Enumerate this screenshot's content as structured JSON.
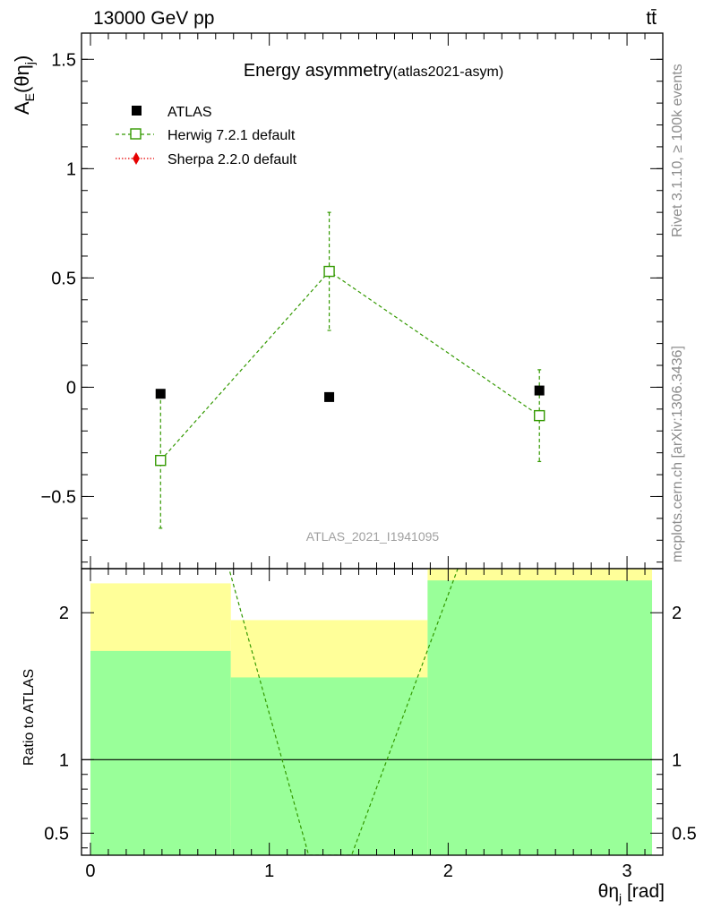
{
  "header": {
    "energy": "13000 GeV pp",
    "process": "tt̄"
  },
  "side_labels": {
    "rivet": "Rivet 3.1.10, ≥ 100k events",
    "mcplots": "mcplots.cern.ch [arXiv:1306.3436]"
  },
  "watermark": "ATLAS_2021_I1941095",
  "colors": {
    "herwig": "#339900",
    "sherpa": "#e60000",
    "band_inner": "#99ff99",
    "band_outer": "#ffff99"
  },
  "chart_data": [
    {
      "type": "scatter",
      "title": "Energy asymmetry",
      "subtitle": "(atlas2021-asym)",
      "ylabel": "A_E(θ_j)",
      "xlabel": "",
      "xlim": [
        -0.05,
        3.2
      ],
      "ylim": [
        -0.83,
        1.62
      ],
      "yticks": [
        -0.5,
        0,
        0.5,
        1,
        1.5
      ],
      "ytick_labels": [
        "−0.5",
        "0",
        "0.5",
        "1",
        "1.5"
      ],
      "legend_position": "top-left",
      "series": [
        {
          "name": "ATLAS",
          "marker": "filled-square",
          "x": [
            0.392,
            1.335,
            2.51
          ],
          "y": [
            -0.03,
            -0.045,
            -0.015
          ]
        },
        {
          "name": "Herwig 7.2.1 default",
          "marker": "open-square",
          "line": "dashed",
          "x": [
            0.392,
            1.335,
            2.51
          ],
          "y": [
            -0.335,
            0.53,
            -0.13
          ],
          "err_low": [
            0.31,
            0.27,
            0.21
          ],
          "err_high": [
            0.305,
            0.27,
            0.21
          ]
        },
        {
          "name": "Sherpa 2.2.0 default",
          "marker": "diamond",
          "line": "dotted",
          "x": [],
          "y": []
        }
      ]
    },
    {
      "type": "line",
      "ylabel": "Ratio to ATLAS",
      "xlabel": "θ_j [rad]",
      "xlim": [
        -0.05,
        3.2
      ],
      "ylim": [
        0.35,
        2.3
      ],
      "yticks": [
        0.5,
        1,
        2
      ],
      "ytick_labels": [
        "0.5",
        "1",
        "2"
      ],
      "xticks": [
        0,
        1,
        2,
        3
      ],
      "xtick_labels": [
        "0",
        "1",
        "2",
        "3"
      ],
      "bins": [
        {
          "x_low": 0,
          "x_high": 0.785,
          "inner": [
            0.35,
            1.74
          ],
          "outer": [
            0.35,
            2.2
          ]
        },
        {
          "x_low": 0.785,
          "x_high": 1.885,
          "inner": [
            0.35,
            1.56
          ],
          "outer": [
            0.55,
            1.95
          ]
        },
        {
          "x_low": 1.885,
          "x_high": 3.14,
          "inner": [
            0.35,
            2.22
          ],
          "outer": [
            0.35,
            2.3
          ]
        }
      ],
      "series": [
        {
          "name": "Herwig 7.2.1 default",
          "line": "dashed",
          "x": [
            0.77,
            1.22,
            1.46,
            2.06
          ],
          "y": [
            2.32,
            0.35,
            0.35,
            2.32
          ]
        }
      ]
    }
  ]
}
